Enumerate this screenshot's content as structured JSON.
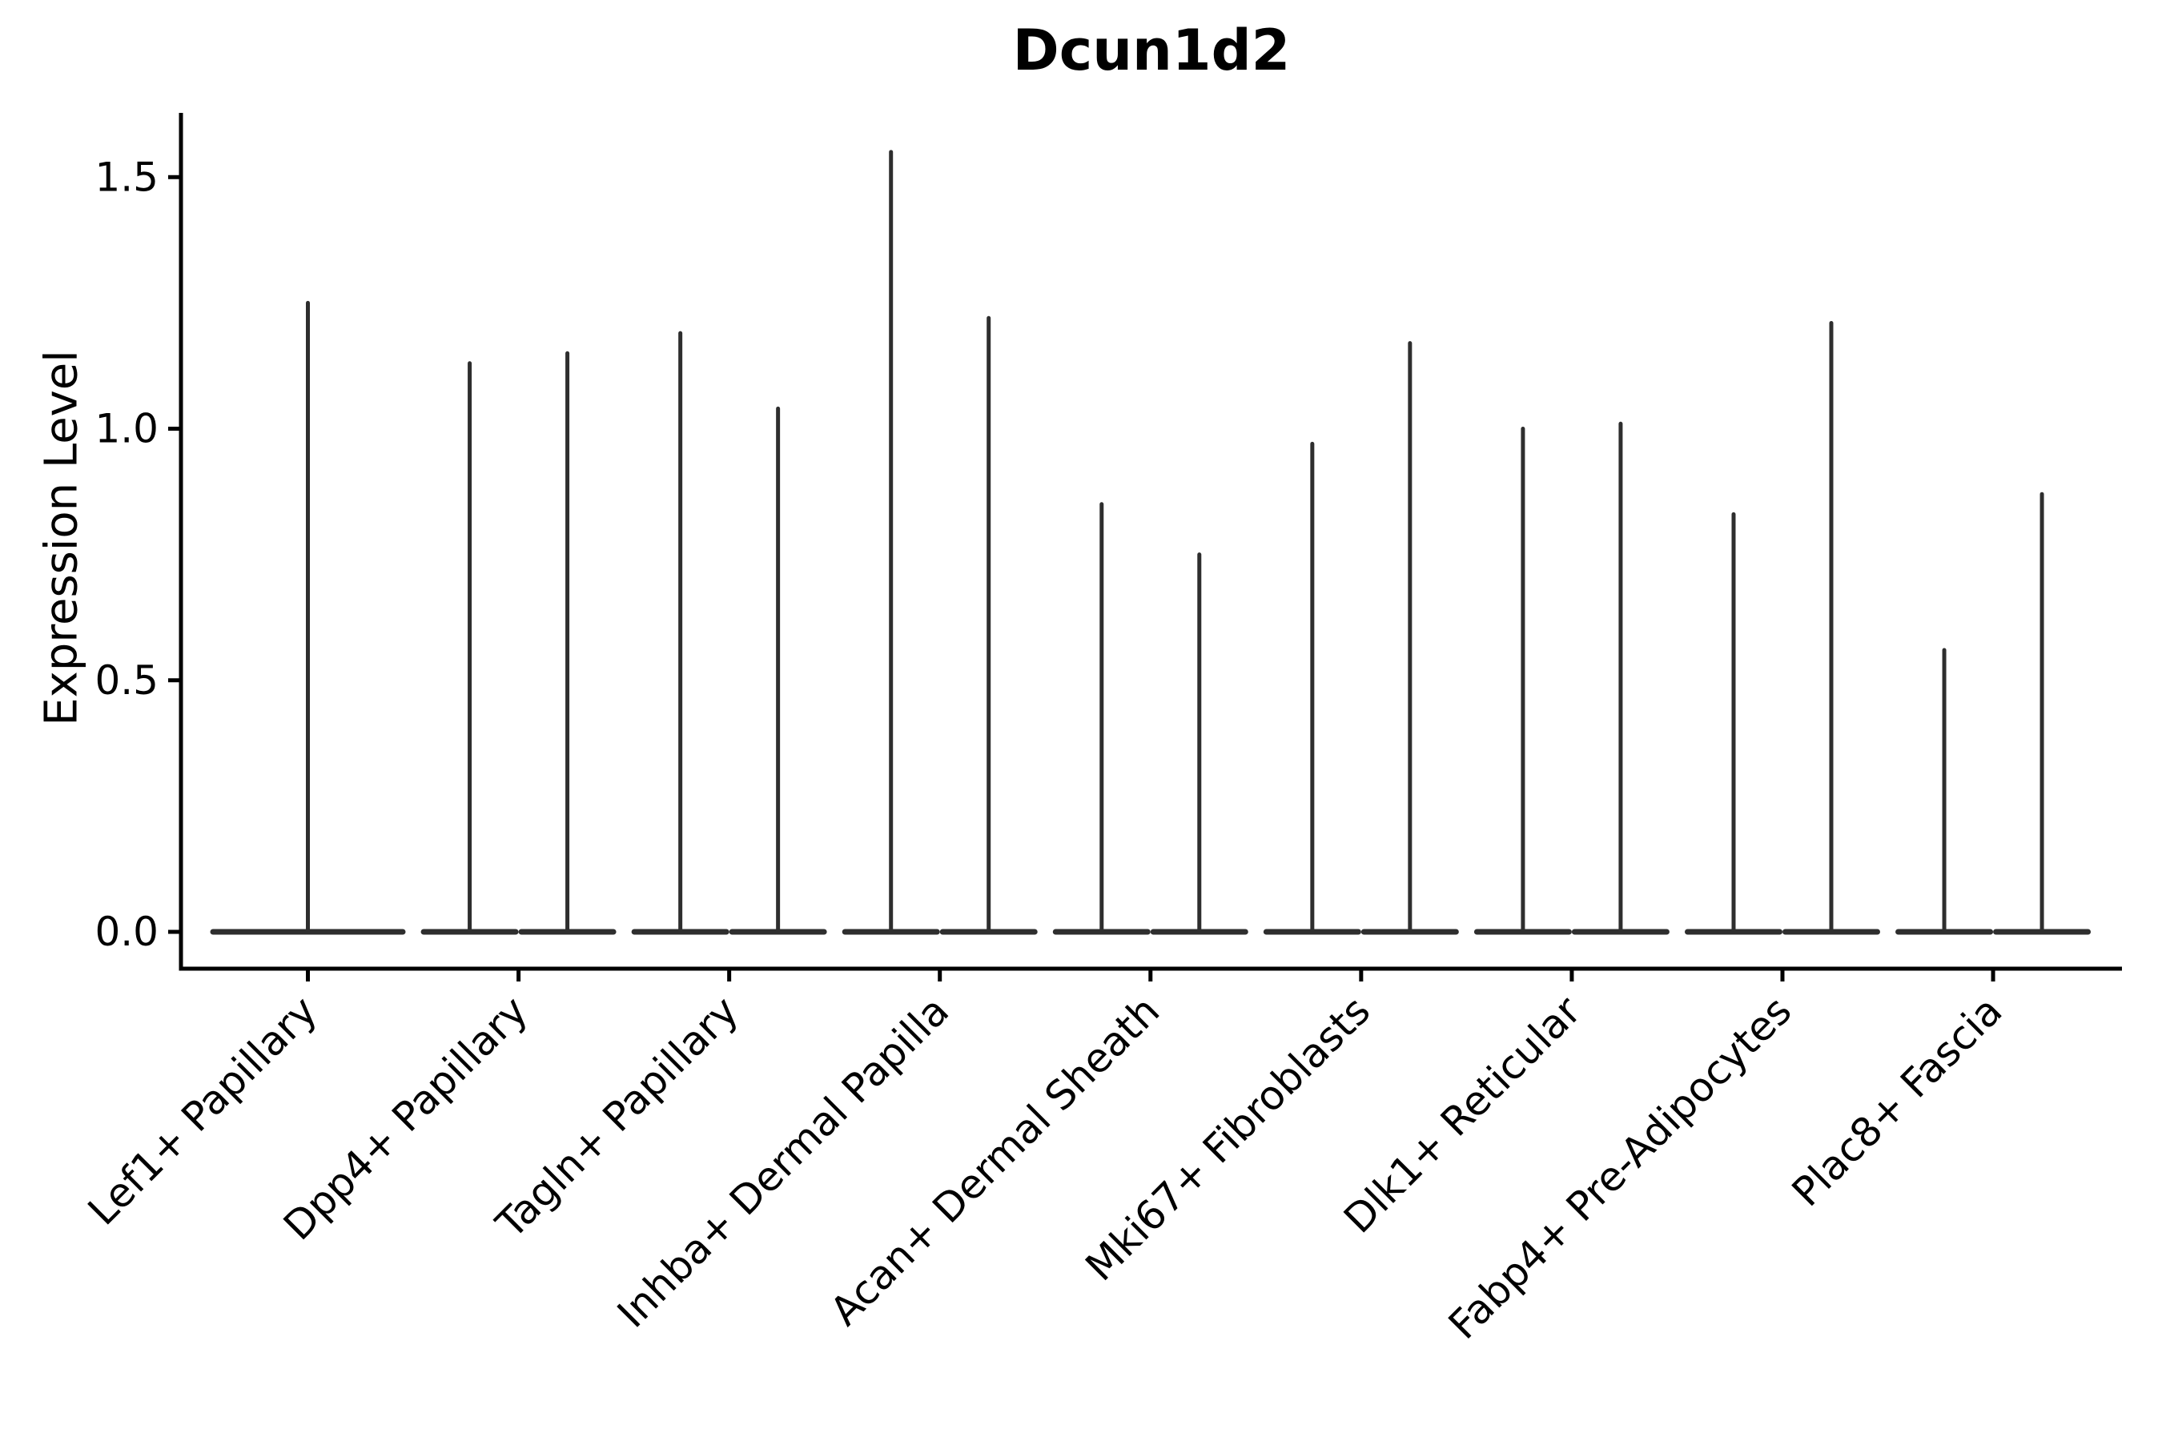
{
  "title": "Dcun1d2",
  "y_axis": {
    "label": "Expression Level",
    "tick_labels": [
      "0.0",
      "0.5",
      "1.0",
      "1.5"
    ],
    "tick_values": [
      0.0,
      0.5,
      1.0,
      1.5
    ]
  },
  "colors": {
    "ink": "#2e2e2e",
    "axis": "#000000",
    "text": "#000000",
    "background": "#ffffff"
  },
  "chart_data": {
    "type": "violin",
    "title": "Dcun1d2",
    "xlabel": "",
    "ylabel": "Expression Level",
    "ylim": [
      0,
      1.63
    ],
    "yticks": [
      0.0,
      0.5,
      1.0,
      1.5
    ],
    "grid": false,
    "legend": "none",
    "description": "Zero-inflated single-cell gene expression violins: nearly all density sits at 0 (wide flat disk) with a thin spike reaching the maximum expression value; categories with two violins show two side-by-side half-width violins.",
    "categories": [
      {
        "label": "Lef1+ Papillary",
        "violins": [
          {
            "max_expression": 1.25
          }
        ]
      },
      {
        "label": "Dpp4+ Papillary",
        "violins": [
          {
            "max_expression": 1.13
          },
          {
            "max_expression": 1.15
          }
        ]
      },
      {
        "label": "Tagln+ Papillary",
        "violins": [
          {
            "max_expression": 1.19
          },
          {
            "max_expression": 1.04
          }
        ]
      },
      {
        "label": "Inhba+ Dermal Papilla",
        "violins": [
          {
            "max_expression": 1.55
          },
          {
            "max_expression": 1.22
          }
        ]
      },
      {
        "label": "Acan+ Dermal Sheath",
        "violins": [
          {
            "max_expression": 0.85
          },
          {
            "max_expression": 0.75
          }
        ]
      },
      {
        "label": "Mki67+ Fibroblasts",
        "violins": [
          {
            "max_expression": 0.97
          },
          {
            "max_expression": 1.17
          }
        ]
      },
      {
        "label": "Dlk1+ Reticular",
        "violins": [
          {
            "max_expression": 1.0
          },
          {
            "max_expression": 1.01
          }
        ]
      },
      {
        "label": "Fabp4+ Pre-Adipocytes",
        "violins": [
          {
            "max_expression": 0.83
          },
          {
            "max_expression": 1.21
          }
        ]
      },
      {
        "label": "Plac8+ Fascia",
        "violins": [
          {
            "max_expression": 0.56
          },
          {
            "max_expression": 0.87
          }
        ]
      }
    ]
  }
}
